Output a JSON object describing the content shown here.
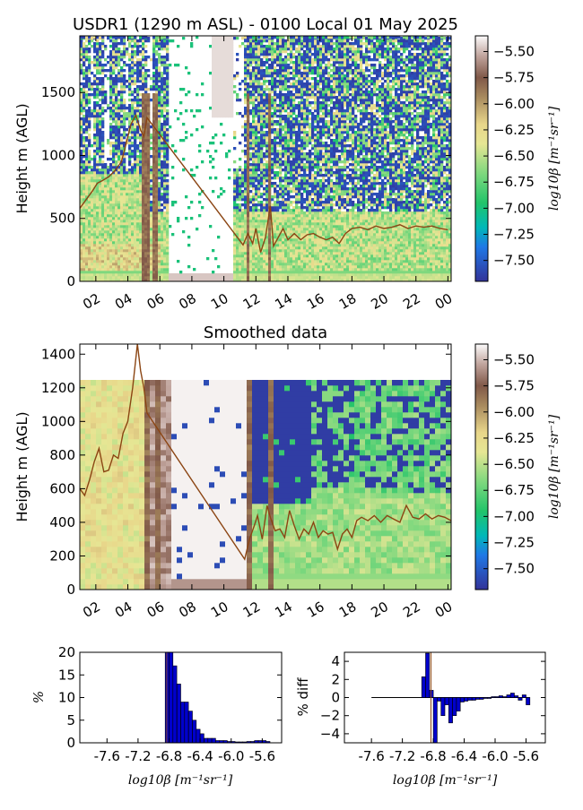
{
  "chart_data": [
    {
      "id": "raw",
      "type": "heatmap",
      "title": "USDR1 (1290 m ASL) - 0100 Local 01 May 2025",
      "ylabel": "Height m (AGL)",
      "xticks": [
        "02",
        "04",
        "06",
        "08",
        "10",
        "12",
        "14",
        "16",
        "18",
        "20",
        "22",
        "00"
      ],
      "xlim": [
        1,
        24.2
      ],
      "yticks": [
        0,
        500,
        1000,
        1500
      ],
      "ylim": [
        0,
        1950
      ],
      "colorbar": {
        "label": "log10β [m⁻¹sr⁻¹]",
        "ticks": [
          -5.5,
          -5.75,
          -6.0,
          -6.25,
          -6.5,
          -6.75,
          -7.0,
          -7.25,
          -7.5
        ],
        "tick_labels": [
          "−5.50",
          "−5.75",
          "−6.00",
          "−6.25",
          "−6.50",
          "−6.75",
          "−7.00",
          "−7.25",
          "−7.50"
        ],
        "range": [
          -7.7,
          -5.35
        ]
      },
      "layer_line": {
        "color": "#8b4513",
        "x": [
          1.0,
          1.4,
          1.8,
          2.1,
          2.4,
          2.8,
          3.2,
          3.6,
          3.9,
          4.2,
          4.5,
          4.8,
          5.0,
          5.2,
          5.5,
          11.2,
          11.5,
          11.8,
          12.0,
          12.3,
          12.6,
          12.9,
          13.1,
          13.4,
          13.7,
          14.0,
          14.4,
          14.8,
          15.2,
          15.6,
          16.0,
          16.4,
          16.8,
          17.2,
          17.6,
          18.0,
          18.5,
          19.0,
          19.5,
          20.0,
          20.5,
          21.0,
          21.5,
          22.0,
          22.5,
          23.0,
          23.5,
          24.0
        ],
        "y": [
          580,
          650,
          720,
          780,
          800,
          830,
          880,
          950,
          1100,
          1250,
          1320,
          1200,
          1150,
          1300,
          1250,
          290,
          380,
          300,
          420,
          230,
          350,
          600,
          280,
          350,
          420,
          330,
          380,
          330,
          370,
          380,
          350,
          330,
          350,
          300,
          380,
          420,
          430,
          410,
          440,
          420,
          430,
          450,
          420,
          440,
          430,
          440,
          420,
          410
        ]
      }
    },
    {
      "id": "smoothed",
      "type": "heatmap",
      "title": "Smoothed data",
      "ylabel": "Height m (AGL)",
      "xticks": [
        "02",
        "04",
        "06",
        "08",
        "10",
        "12",
        "14",
        "16",
        "18",
        "20",
        "22",
        "00"
      ],
      "xlim": [
        1,
        24.2
      ],
      "yticks": [
        0,
        200,
        400,
        600,
        800,
        1000,
        1200,
        1400
      ],
      "ylim": [
        0,
        1460
      ],
      "colorbar": {
        "label": "log10β [m⁻¹sr⁻¹]",
        "ticks": [
          -5.5,
          -5.75,
          -6.0,
          -6.25,
          -6.5,
          -6.75,
          -7.0,
          -7.25,
          -7.5
        ],
        "tick_labels": [
          "−5.50",
          "−5.75",
          "−6.00",
          "−6.25",
          "−6.50",
          "−6.75",
          "−7.00",
          "−7.25",
          "−7.50"
        ],
        "range": [
          -7.7,
          -5.35
        ]
      },
      "layer_line": {
        "color": "#8b4513",
        "x": [
          1.0,
          1.3,
          1.6,
          1.9,
          2.2,
          2.5,
          2.8,
          3.1,
          3.4,
          3.7,
          4.0,
          4.3,
          4.6,
          4.8,
          5.0,
          5.2,
          11.3,
          11.6,
          11.9,
          12.1,
          12.4,
          12.7,
          12.9,
          13.2,
          13.5,
          13.8,
          14.1,
          14.4,
          14.7,
          15.0,
          15.3,
          15.6,
          15.9,
          16.2,
          16.5,
          16.8,
          17.1,
          17.4,
          17.7,
          18.0,
          18.3,
          18.6,
          19.0,
          19.4,
          19.8,
          20.2,
          20.6,
          21.0,
          21.4,
          21.8,
          22.2,
          22.6,
          23.0,
          23.4,
          23.8,
          24.2
        ],
        "y": [
          600,
          560,
          650,
          760,
          840,
          700,
          710,
          800,
          780,
          930,
          1000,
          1200,
          1460,
          1300,
          1200,
          1050,
          180,
          300,
          380,
          440,
          300,
          500,
          430,
          350,
          360,
          310,
          470,
          380,
          300,
          360,
          330,
          400,
          310,
          350,
          330,
          340,
          240,
          330,
          360,
          310,
          410,
          430,
          410,
          440,
          400,
          440,
          420,
          400,
          500,
          430,
          420,
          450,
          420,
          440,
          430,
          410
        ]
      }
    },
    {
      "id": "histogram",
      "type": "bar",
      "ylabel": "%",
      "xlabel": "log10β [m⁻¹sr⁻¹]",
      "xticks": [
        -7.6,
        -7.2,
        -6.8,
        -6.4,
        -6.0,
        -5.6
      ],
      "xtick_labels": [
        "-7.6",
        "-7.2",
        "-6.8",
        "-6.4",
        "-6.0",
        "-5.6"
      ],
      "xlim": [
        -7.95,
        -5.35
      ],
      "ylim": [
        0,
        20
      ],
      "yticks": [
        0,
        5,
        10,
        15,
        20
      ],
      "bin_width": 0.05,
      "x": [
        -6.85,
        -6.8,
        -6.75,
        -6.7,
        -6.65,
        -6.6,
        -6.55,
        -6.5,
        -6.45,
        -6.4,
        -6.35,
        -6.3,
        -6.25,
        -6.2,
        -6.15,
        -6.1,
        -6.05,
        -6.0,
        -5.95,
        -5.9,
        -5.85,
        -5.8,
        -5.75,
        -5.7,
        -5.65,
        -5.6,
        -5.55
      ],
      "values": [
        21,
        21,
        17,
        13,
        9,
        9,
        7,
        5,
        3,
        2,
        1,
        1,
        1,
        0.5,
        0.5,
        0.5,
        0.3,
        0.3,
        0.2,
        0.2,
        0.2,
        0.3,
        0.3,
        0.5,
        0.5,
        0.5,
        0.3
      ],
      "marker_x": -6.83
    },
    {
      "id": "diff",
      "type": "bar",
      "ylabel": "% diff",
      "xlabel": "log10β [m⁻¹sr⁻¹]",
      "xticks": [
        -7.6,
        -7.2,
        -6.8,
        -6.4,
        -6.0,
        -5.6
      ],
      "xtick_labels": [
        "-7.6",
        "-7.2",
        "-6.8",
        "-6.4",
        "-6.0",
        "-5.6"
      ],
      "xlim": [
        -7.95,
        -5.35
      ],
      "ylim": [
        -5,
        5
      ],
      "yticks": [
        -4,
        -2,
        0,
        2,
        4
      ],
      "ytick_labels": [
        "−4",
        "−2",
        "0",
        "2",
        "4"
      ],
      "bin_width": 0.05,
      "x": [
        -6.95,
        -6.9,
        -6.85,
        -6.8,
        -6.75,
        -6.7,
        -6.65,
        -6.6,
        -6.55,
        -6.5,
        -6.45,
        -6.4,
        -6.35,
        -6.3,
        -6.25,
        -6.2,
        -6.15,
        -6.1,
        -6.05,
        -6.0,
        -5.95,
        -5.9,
        -5.85,
        -5.8,
        -5.75,
        -5.7,
        -5.65,
        -5.6
      ],
      "values": [
        2.3,
        4.9,
        0.8,
        -5.0,
        -0.4,
        -2.0,
        -0.8,
        -2.8,
        -2.0,
        -1.5,
        -0.5,
        -0.4,
        -0.3,
        -0.3,
        -0.2,
        -0.2,
        -0.1,
        -0.1,
        0.1,
        0.1,
        0.2,
        0.1,
        0.3,
        0.5,
        0.2,
        -0.3,
        0.3,
        -0.8
      ],
      "zero_line_range": [
        -7.6,
        -5.55
      ],
      "marker_x": -6.83
    }
  ]
}
